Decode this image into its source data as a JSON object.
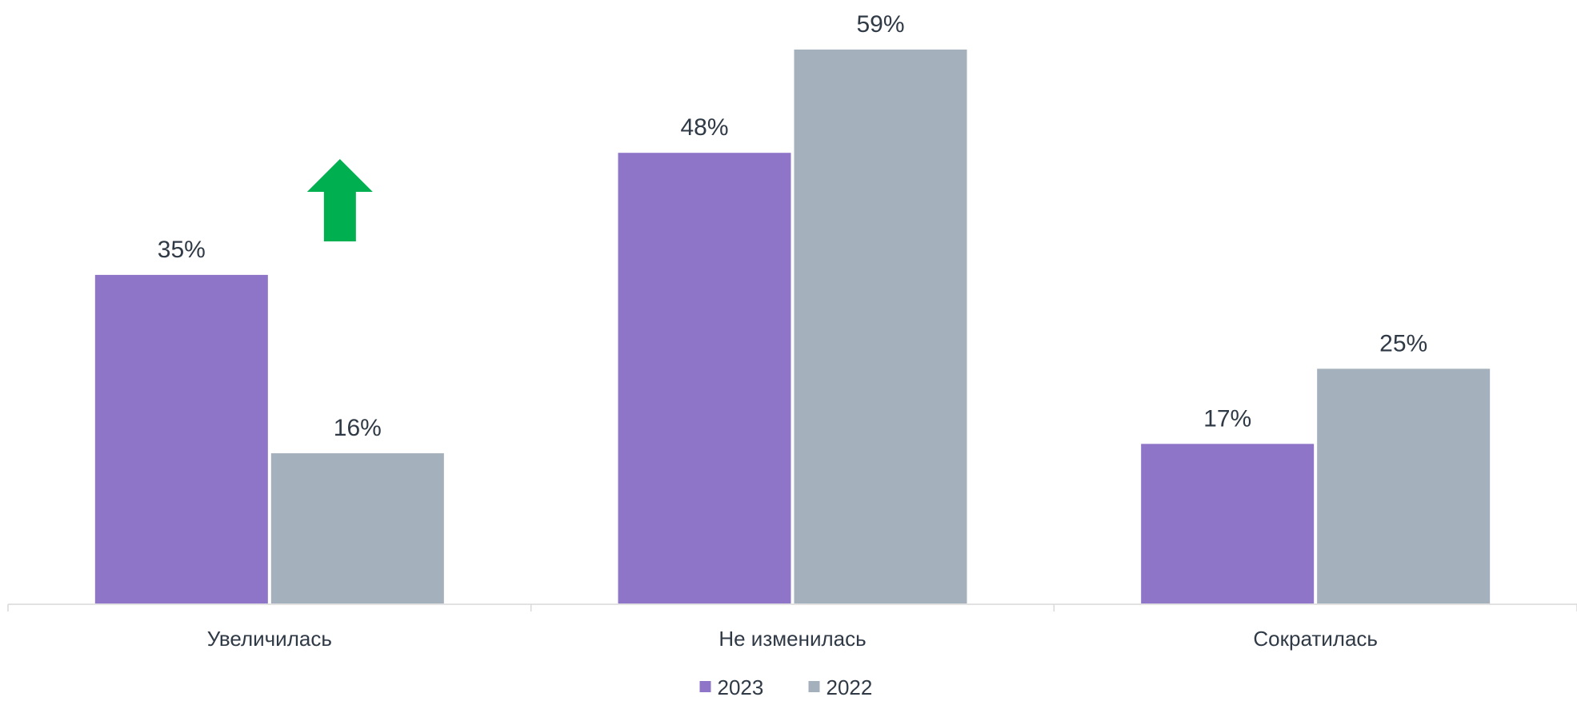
{
  "chart_data": {
    "type": "bar",
    "categories": [
      "Увеличилась",
      "Не изменилась",
      "Сократилась"
    ],
    "series": [
      {
        "name": "2023",
        "values": [
          35,
          48,
          17
        ],
        "color": "#8e75c7"
      },
      {
        "name": "2022",
        "values": [
          16,
          59,
          25
        ],
        "color": "#a4b0bc"
      }
    ],
    "value_suffix": "%",
    "ylim": [
      0,
      59
    ],
    "grid": false,
    "legend_position": "bottom",
    "annotations": [
      {
        "type": "up-arrow-icon",
        "category": "Увеличилась",
        "color": "#00b050"
      }
    ],
    "axis_color": "#d9d9d9",
    "text_color": "#2f3a46"
  }
}
